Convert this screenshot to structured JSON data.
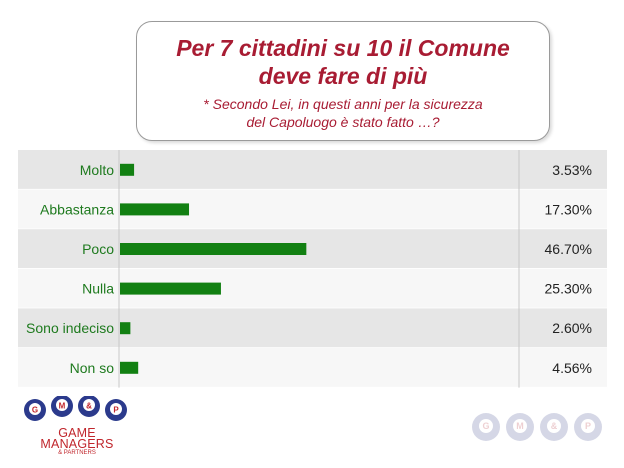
{
  "title": {
    "line1": "Per 7 cittadini su 10 il Comune",
    "line2": "deve fare di più",
    "sub1": "* Secondo Lei, in questi anni per la sicurezza",
    "sub2": "del Capoluogo è stato fatto …?"
  },
  "chart_data": {
    "type": "bar",
    "orientation": "horizontal",
    "categories": [
      "Molto",
      "Abbastanza",
      "Poco",
      "Nulla",
      "Sono indeciso",
      "Non so"
    ],
    "values": [
      3.53,
      17.3,
      46.7,
      25.3,
      2.6,
      4.56
    ],
    "value_labels": [
      "3.53%",
      "17.30%",
      "46.70%",
      "25.30%",
      "2.60%",
      "4.56%"
    ],
    "xlim": [
      0,
      100
    ],
    "grid": false,
    "bar_color": "#128012",
    "label_color": "#1e7a1e",
    "stripe_colors": [
      "#e6e6e6",
      "#f7f7f7"
    ]
  },
  "logo": {
    "balls": [
      "G",
      "M",
      "&",
      "P"
    ],
    "line1": "GAME",
    "line2": "MANAGERS",
    "line3": "& PARTNERS"
  },
  "colors": {
    "title": "#a81c33",
    "logo": "#c0262c",
    "ball": "#2b3a8c"
  }
}
